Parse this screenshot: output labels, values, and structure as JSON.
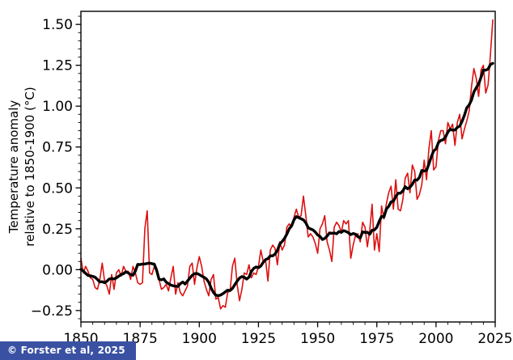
{
  "attribution": {
    "text": "© Forster et al, 2025",
    "bg_color": "#3a51a3",
    "text_color": "#ffffff"
  },
  "chart_data": {
    "type": "line",
    "title": "",
    "xlabel": "",
    "ylabel": "Temperature anomaly relative to 1850-1900 (°C)",
    "ylabel_line1": "Temperature anomaly",
    "ylabel_line2": "relative to 1850-1900 (°C)",
    "xlim": [
      1850,
      2025
    ],
    "ylim": [
      -0.32,
      1.58
    ],
    "grid": false,
    "legend": "none",
    "xticks": [
      1850,
      1875,
      1900,
      1925,
      1950,
      1975,
      2000,
      2025
    ],
    "xtick_labels": [
      "1850",
      "1875",
      "1900",
      "1925",
      "1950",
      "1975",
      "2000",
      "2025"
    ],
    "yticks": [
      -0.25,
      0.0,
      0.25,
      0.5,
      0.75,
      1.0,
      1.25,
      1.5
    ],
    "ytick_labels": [
      "−0.25",
      "0.00",
      "0.25",
      "0.50",
      "0.75",
      "1.00",
      "1.25",
      "1.50"
    ],
    "x_minor_step": 5,
    "y_minor_step": 0.05,
    "smoothing_window": 9,
    "x_start": 1850,
    "x_end": 2024,
    "series": [
      {
        "name": "annual-temperature-anomaly",
        "color": "#dc1010",
        "x_start": 1850,
        "values": [
          0.07,
          -0.02,
          0.02,
          -0.01,
          -0.05,
          -0.06,
          -0.11,
          -0.12,
          -0.06,
          0.04,
          -0.07,
          -0.1,
          -0.15,
          -0.03,
          -0.12,
          -0.02,
          0.0,
          -0.04,
          0.02,
          -0.01,
          -0.01,
          -0.06,
          0.02,
          -0.02,
          -0.08,
          -0.09,
          -0.08,
          0.25,
          0.36,
          -0.02,
          -0.03,
          0.02,
          0.01,
          -0.06,
          -0.12,
          -0.11,
          -0.09,
          -0.13,
          -0.05,
          0.02,
          -0.15,
          -0.08,
          -0.14,
          -0.16,
          -0.13,
          -0.1,
          0.02,
          0.04,
          -0.09,
          0.01,
          0.08,
          0.02,
          -0.07,
          -0.12,
          -0.16,
          -0.06,
          -0.03,
          -0.18,
          -0.17,
          -0.24,
          -0.22,
          -0.23,
          -0.14,
          -0.13,
          0.02,
          0.07,
          -0.09,
          -0.19,
          -0.12,
          -0.02,
          -0.03,
          0.03,
          -0.05,
          -0.02,
          -0.03,
          0.02,
          0.12,
          0.05,
          0.06,
          -0.07,
          0.12,
          0.15,
          0.13,
          0.03,
          0.17,
          0.12,
          0.15,
          0.26,
          0.28,
          0.26,
          0.32,
          0.37,
          0.32,
          0.33,
          0.45,
          0.33,
          0.2,
          0.22,
          0.2,
          0.16,
          0.1,
          0.25,
          0.28,
          0.33,
          0.17,
          0.12,
          0.05,
          0.26,
          0.29,
          0.27,
          0.23,
          0.3,
          0.28,
          0.3,
          0.07,
          0.15,
          0.21,
          0.22,
          0.17,
          0.29,
          0.26,
          0.14,
          0.24,
          0.4,
          0.12,
          0.22,
          0.11,
          0.39,
          0.31,
          0.4,
          0.47,
          0.51,
          0.37,
          0.55,
          0.37,
          0.36,
          0.43,
          0.56,
          0.59,
          0.47,
          0.64,
          0.6,
          0.43,
          0.46,
          0.52,
          0.67,
          0.55,
          0.74,
          0.85,
          0.61,
          0.63,
          0.79,
          0.85,
          0.85,
          0.77,
          0.9,
          0.86,
          0.89,
          0.76,
          0.9,
          0.95,
          0.8,
          0.86,
          0.91,
          0.97,
          1.12,
          1.23,
          1.17,
          1.06,
          1.22,
          1.25,
          1.08,
          1.13,
          1.32,
          1.53
        ]
      },
      {
        "name": "smoothed-temperature-anomaly",
        "color": "#000000",
        "derived_from": "annual-temperature-anomaly",
        "method": "centered running mean"
      }
    ]
  }
}
